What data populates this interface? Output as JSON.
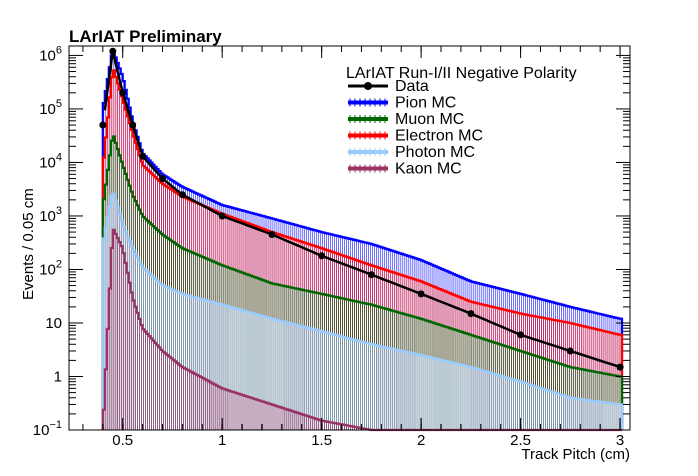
{
  "chart_data": {
    "type": "histogram",
    "title": "LArIAT Preliminary",
    "xlabel": "Track Pitch (cm)",
    "ylabel": "Events / 0.05 cm",
    "xlim": [
      0.23,
      3.05
    ],
    "ylim": [
      0.1,
      1500000
    ],
    "yscale": "log",
    "grid": false,
    "legend_header": "LArIAT Run-I/II Negative Polarity",
    "legend_position": "top-right",
    "x_ticks": [
      {
        "value": 0.5,
        "label": "0.5"
      },
      {
        "value": 1,
        "label": "1"
      },
      {
        "value": 1.5,
        "label": "1.5"
      },
      {
        "value": 2,
        "label": "2"
      },
      {
        "value": 2.5,
        "label": "2.5"
      },
      {
        "value": 3,
        "label": "3"
      }
    ],
    "y_ticks": [
      {
        "value": 0.1,
        "base": "10",
        "exp": "−1"
      },
      {
        "value": 1,
        "base": "1",
        "exp": ""
      },
      {
        "value": 10,
        "base": "10",
        "exp": ""
      },
      {
        "value": 100,
        "base": "10",
        "exp": "2"
      },
      {
        "value": 1000,
        "base": "10",
        "exp": "3"
      },
      {
        "value": 10000,
        "base": "10",
        "exp": "4"
      },
      {
        "value": 100000,
        "base": "10",
        "exp": "5"
      },
      {
        "value": 1000000,
        "base": "10",
        "exp": "6"
      }
    ],
    "x": [
      0.4,
      0.45,
      0.5,
      0.55,
      0.6,
      0.7,
      0.8,
      1.0,
      1.25,
      1.5,
      1.75,
      2.0,
      2.25,
      2.5,
      2.75,
      3.0
    ],
    "series": [
      {
        "name": "Pion MC",
        "color": "#0000ff",
        "style": "histogram",
        "values": [
          100000,
          1300000,
          400000,
          60000,
          15000,
          6000,
          3500,
          1600,
          900,
          500,
          300,
          150,
          60,
          35,
          20,
          12
        ]
      },
      {
        "name": "Electron MC",
        "color": "#ff0000",
        "style": "histogram",
        "values": [
          8000,
          600000,
          150000,
          35000,
          9000,
          4000,
          2300,
          1100,
          500,
          250,
          120,
          60,
          25,
          15,
          10,
          6
        ]
      },
      {
        "name": "Muon MC",
        "color": "#006600",
        "style": "histogram",
        "values": [
          1500,
          35000,
          9000,
          2500,
          1000,
          450,
          250,
          120,
          55,
          35,
          22,
          12,
          6,
          3,
          1.5,
          1
        ]
      },
      {
        "name": "Photon MC",
        "color": "#99ccff",
        "style": "histogram",
        "values": [
          300,
          3000,
          700,
          250,
          110,
          50,
          35,
          22,
          12,
          7,
          4,
          2.5,
          1.5,
          0.8,
          0.4,
          0.3
        ]
      },
      {
        "name": "Kaon MC",
        "color": "#993366",
        "style": "histogram",
        "values": [
          0.1,
          600,
          250,
          30,
          8,
          3,
          1.5,
          0.6,
          0.3,
          0.15,
          0.1,
          0.1,
          0.1,
          0.1,
          0.1,
          0.1
        ]
      },
      {
        "name": "Data",
        "color": "#000000",
        "style": "points",
        "values": [
          50000,
          1200000,
          200000,
          50000,
          13000,
          5000,
          2500,
          1000,
          450,
          180,
          80,
          35,
          15,
          6,
          3,
          1.5
        ]
      }
    ],
    "legend_order": [
      "Data",
      "Pion MC",
      "Muon MC",
      "Electron MC",
      "Photon MC",
      "Kaon MC"
    ]
  }
}
